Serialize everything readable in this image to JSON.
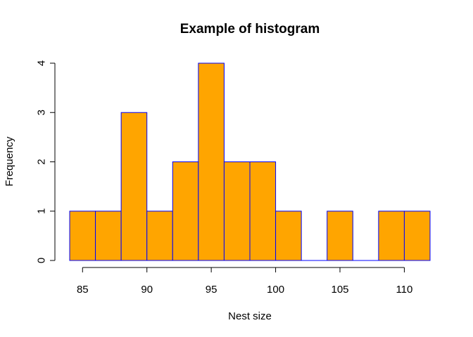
{
  "chart_data": {
    "type": "bar",
    "title": "Example of histogram",
    "xlabel": "Nest size",
    "ylabel": "Frequency",
    "bin_width": 2,
    "bins": [
      {
        "start": 84,
        "end": 86,
        "count": 1
      },
      {
        "start": 86,
        "end": 88,
        "count": 1
      },
      {
        "start": 88,
        "end": 90,
        "count": 3
      },
      {
        "start": 90,
        "end": 92,
        "count": 1
      },
      {
        "start": 92,
        "end": 94,
        "count": 2
      },
      {
        "start": 94,
        "end": 96,
        "count": 4
      },
      {
        "start": 96,
        "end": 98,
        "count": 2
      },
      {
        "start": 98,
        "end": 100,
        "count": 2
      },
      {
        "start": 100,
        "end": 102,
        "count": 1
      },
      {
        "start": 102,
        "end": 104,
        "count": 0
      },
      {
        "start": 104,
        "end": 106,
        "count": 1
      },
      {
        "start": 106,
        "end": 108,
        "count": 0
      },
      {
        "start": 108,
        "end": 110,
        "count": 1
      },
      {
        "start": 110,
        "end": 112,
        "count": 1
      }
    ],
    "xlim": [
      84,
      112
    ],
    "ylim": [
      0,
      4
    ],
    "x_ticks": [
      "85",
      "90",
      "95",
      "100",
      "105",
      "110"
    ],
    "y_ticks": [
      "0",
      "1",
      "2",
      "3",
      "4"
    ],
    "bar_fill": "#ffa500",
    "bar_border": "#0000ff",
    "grid": false
  }
}
